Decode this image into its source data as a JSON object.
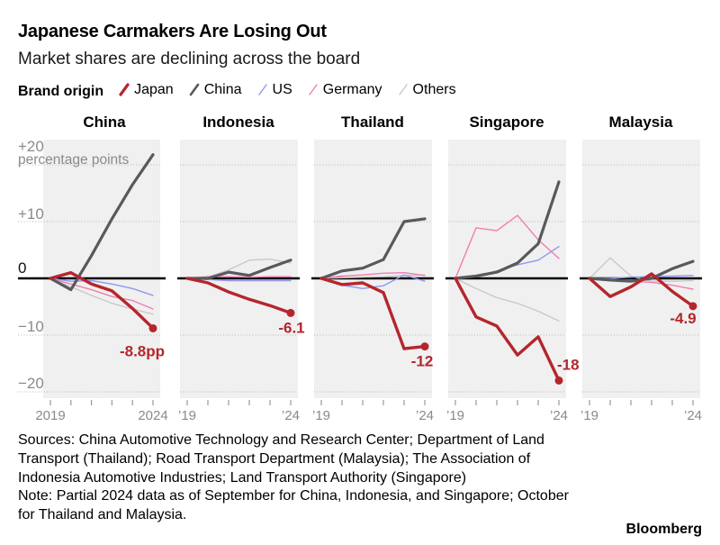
{
  "header": {
    "title": "Japanese Carmakers Are Losing Out",
    "subtitle": "Market shares are declining across the board"
  },
  "legend": {
    "label": "Brand origin",
    "entries": [
      {
        "key": "japan",
        "label": "Japan"
      },
      {
        "key": "china",
        "label": "China"
      },
      {
        "key": "us",
        "label": "US"
      },
      {
        "key": "germany",
        "label": "Germany"
      },
      {
        "key": "others",
        "label": "Others"
      }
    ]
  },
  "colors": {
    "japan": "#b5262c",
    "china": "#58595c",
    "us": "#9097ef",
    "germany": "#f27daf",
    "others": "#c7c7c7",
    "grid": "#b5b5b5",
    "axis_text": "#8a8a8a",
    "zero_line": "#000000",
    "panel_bg": "#f0f0f0"
  },
  "chart_data": {
    "type": "line",
    "unit_label": "percentage points",
    "x": [
      2019,
      2020,
      2021,
      2022,
      2023,
      2024
    ],
    "ylim": [
      -21,
      24.4
    ],
    "yticks": [
      {
        "value": 20,
        "label": "+20"
      },
      {
        "value": 10,
        "label": "+10"
      },
      {
        "value": 0,
        "label": "0"
      },
      {
        "value": -10,
        "label": "−10"
      },
      {
        "value": -20,
        "label": "−20"
      }
    ],
    "grid_values": [
      20,
      10,
      -10,
      -20
    ],
    "series_names": [
      "japan",
      "china",
      "us",
      "germany",
      "others"
    ],
    "panels": [
      {
        "title": "China",
        "x_tick_labels": [
          "2019",
          "2024"
        ],
        "end_label": "-8.8pp",
        "series": {
          "japan": [
            0,
            1,
            -1,
            -2.2,
            -5.3,
            -8.8
          ],
          "china": [
            0,
            -2,
            4,
            10.5,
            16.5,
            21.8
          ],
          "us": [
            0,
            -0.5,
            -0.4,
            -1,
            -1.8,
            -3
          ],
          "germany": [
            0,
            -1,
            -2,
            -3.2,
            -3.9,
            -5.4
          ],
          "others": [
            0,
            -1.5,
            -3,
            -4.4,
            -5.4,
            -6.3
          ]
        }
      },
      {
        "title": "Indonesia",
        "x_tick_labels": [
          "’19",
          "’24"
        ],
        "end_label": "-6.1",
        "series": {
          "japan": [
            0,
            -0.8,
            -2.4,
            -3.7,
            -4.8,
            -6.1
          ],
          "china": [
            0,
            0,
            1.1,
            0.5,
            1.9,
            3.2
          ],
          "us": [
            0,
            -0.2,
            -0.4,
            -0.4,
            -0.4,
            -0.4
          ],
          "germany": [
            0,
            0.3,
            0.3,
            0.2,
            0.3,
            0.3
          ],
          "others": [
            0,
            0.2,
            1.5,
            3.2,
            3.4,
            2.7
          ]
        }
      },
      {
        "title": "Thailand",
        "x_tick_labels": [
          "’19",
          "’24"
        ],
        "end_label": "-12",
        "series": {
          "japan": [
            0,
            -1.1,
            -0.8,
            -2.5,
            -12.4,
            -12
          ],
          "china": [
            0,
            1.3,
            1.8,
            3.3,
            10,
            10.5
          ],
          "us": [
            0,
            -1.2,
            -1.8,
            -1.3,
            0.6,
            -0.5
          ],
          "germany": [
            0,
            0.4,
            0.6,
            0.9,
            1,
            0.5
          ],
          "others": [
            0,
            0.1,
            0.2,
            0.3,
            0.5,
            0.6
          ]
        }
      },
      {
        "title": "Singapore",
        "x_tick_labels": [
          "’19",
          "’24"
        ],
        "end_label": "-18",
        "series": {
          "japan": [
            0,
            -6.8,
            -8.4,
            -13.5,
            -10.3,
            -18
          ],
          "china": [
            0,
            0.4,
            1.1,
            2.7,
            6.1,
            17
          ],
          "us": [
            0,
            0.3,
            1.3,
            2.4,
            3.2,
            5.6
          ],
          "germany": [
            0,
            8.9,
            8.4,
            11.1,
            6.8,
            3.5
          ],
          "others": [
            0,
            -1.8,
            -3.4,
            -4.4,
            -5.8,
            -7.5
          ]
        }
      },
      {
        "title": "Malaysia",
        "x_tick_labels": [
          "’19",
          "’24"
        ],
        "end_label": "-4.9",
        "series": {
          "japan": [
            0,
            -3.2,
            -1.5,
            0.8,
            -2.3,
            -4.9
          ],
          "china": [
            0,
            -0.3,
            -0.5,
            0,
            1.7,
            3
          ],
          "us": [
            0,
            0,
            0.2,
            0.3,
            0.4,
            0.5
          ],
          "germany": [
            0,
            -0.3,
            -0.5,
            -0.7,
            -1.2,
            -1.9
          ],
          "others": [
            0,
            3.6,
            0.4,
            -0.5,
            -0.5,
            -0.4
          ]
        }
      }
    ]
  },
  "footer": {
    "sources": "Sources: China Automotive Technology and Research Center; Department of Land Transport (Thailand); Road Transport Department (Malaysia); The Association of Indonesia Automotive Industries; Land Transport Authority (Singapore)",
    "note": "Note: Partial 2024 data as of September for China, Indonesia, and Singapore; October for Thailand and Malaysia.",
    "brand": "Bloomberg"
  }
}
